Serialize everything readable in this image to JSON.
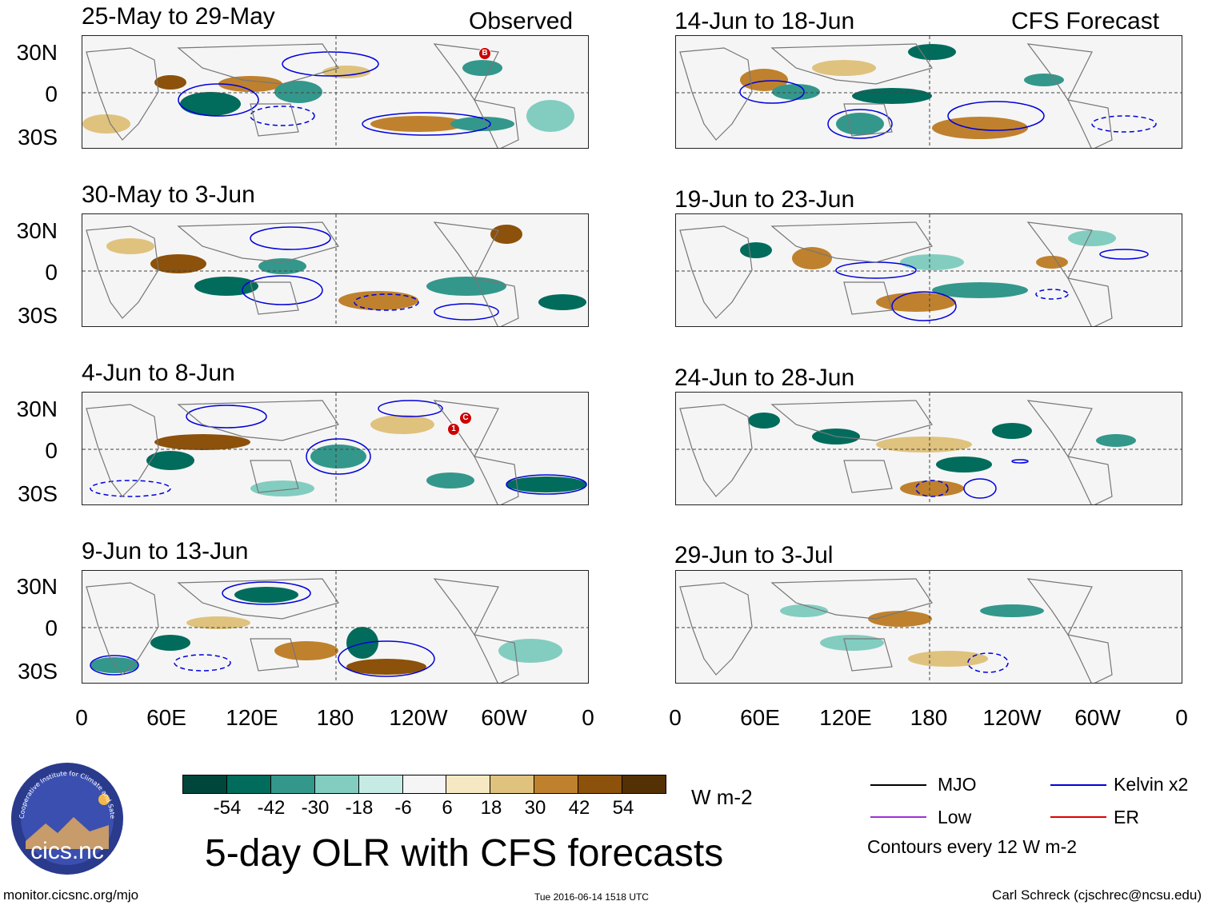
{
  "header": {
    "observed_tag": "Observed",
    "forecast_tag": "CFS Forecast"
  },
  "panels": {
    "observed": [
      {
        "title": "25-May to 29-May"
      },
      {
        "title": "30-May to 3-Jun"
      },
      {
        "title": "4-Jun to 8-Jun"
      },
      {
        "title": "9-Jun to 13-Jun"
      }
    ],
    "forecast": [
      {
        "title": "14-Jun to 18-Jun"
      },
      {
        "title": "19-Jun to 23-Jun"
      },
      {
        "title": "24-Jun to 28-Jun"
      },
      {
        "title": "29-Jun to 3-Jul"
      }
    ]
  },
  "axes": {
    "lat_labels": [
      "30N",
      "0",
      "30S"
    ],
    "lon_labels": [
      "0",
      "60E",
      "120E",
      "180",
      "120W",
      "60W",
      "0"
    ]
  },
  "markers": {
    "storm_b": "B",
    "storm_c": "C",
    "storm_1": "1"
  },
  "colorbar": {
    "colors": [
      "#01463a",
      "#016c5c",
      "#34978b",
      "#82cdc0",
      "#c6ebe5",
      "#f5f5f5",
      "#f6e8c3",
      "#dfc27d",
      "#bf812d",
      "#8c510a",
      "#543005"
    ],
    "tick_labels": [
      "-54",
      "-42",
      "-30",
      "-18",
      "-6",
      "6",
      "18",
      "30",
      "42",
      "54"
    ],
    "units": "W m-2"
  },
  "title": "5-day OLR with CFS forecasts",
  "logo": {
    "text": "cics.nc",
    "ring_text": "Cooperative Institute for Climate and Satellites"
  },
  "legend": {
    "items": [
      {
        "label": "MJO",
        "color": "#000000"
      },
      {
        "label": "Kelvin x2",
        "color": "#0000dd"
      },
      {
        "label": "Low",
        "color": "#9b30d9"
      },
      {
        "label": "ER",
        "color": "#dd0000"
      }
    ],
    "note": "Contours every 12 W m-2"
  },
  "footer": {
    "url": "monitor.cicsnc.org/mjo",
    "timestamp": "Tue 2016-06-14 1518 UTC",
    "credit": "Carl Schreck (cjschrec@ncsu.edu)"
  }
}
